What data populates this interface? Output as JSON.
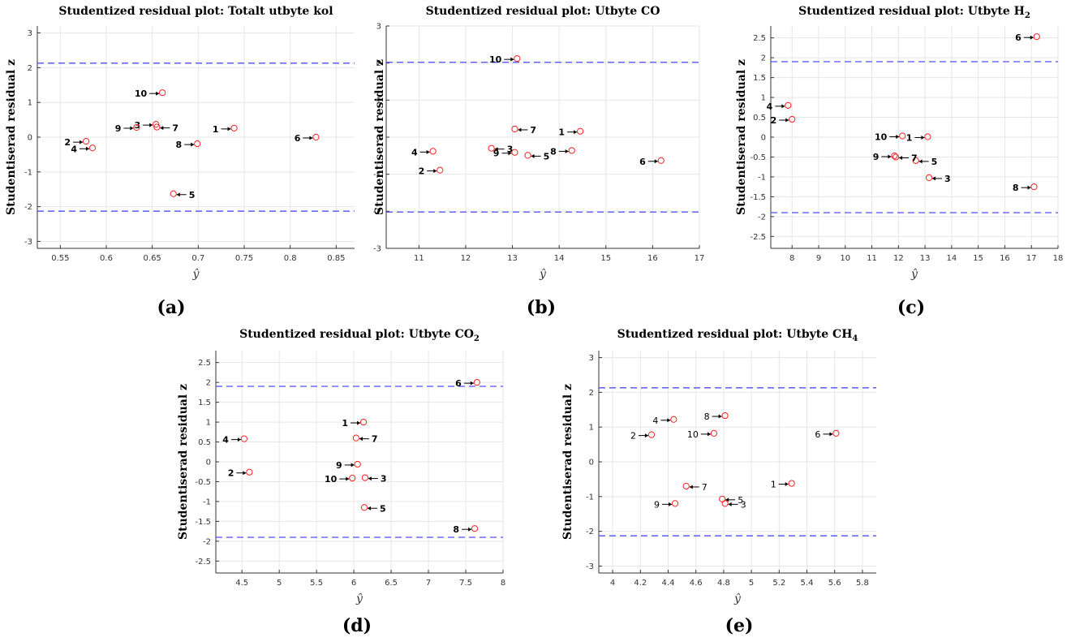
{
  "chart_data": [
    {
      "id": "a",
      "type": "scatter",
      "title": "Studentized residual plot: Totalt utbyte kol",
      "caption": "(a)",
      "xlabel": "ŷ",
      "ylabel": "Studentiserad residual z",
      "xlim": [
        0.525,
        0.87
      ],
      "ylim": [
        -3.2,
        3.2
      ],
      "xticks": [
        0.55,
        0.6,
        0.65,
        0.7,
        0.75,
        0.8,
        0.85
      ],
      "xticklabels": [
        "0.55",
        "0.6",
        "0.65",
        "0.7",
        "0.75",
        "0.8",
        "0.85"
      ],
      "yticks": [
        -3,
        -2,
        -1,
        0,
        1,
        2,
        3
      ],
      "yticklabels": [
        "-3",
        "-2",
        "-1",
        "0",
        "1",
        "2",
        "3"
      ],
      "thresholds": [
        2.13,
        -2.13
      ],
      "label_style": "bold",
      "points": [
        {
          "label": "1",
          "x": 0.739,
          "y": 0.26,
          "side": "left"
        },
        {
          "label": "2",
          "x": 0.578,
          "y": -0.12,
          "side": "left"
        },
        {
          "label": "3",
          "x": 0.654,
          "y": 0.37,
          "side": "left"
        },
        {
          "label": "4",
          "x": 0.585,
          "y": -0.31,
          "side": "left"
        },
        {
          "label": "5",
          "x": 0.673,
          "y": -1.63,
          "side": "right"
        },
        {
          "label": "6",
          "x": 0.828,
          "y": 0.0,
          "side": "left"
        },
        {
          "label": "7",
          "x": 0.655,
          "y": 0.29,
          "side": "right"
        },
        {
          "label": "8",
          "x": 0.699,
          "y": -0.19,
          "side": "left"
        },
        {
          "label": "9",
          "x": 0.633,
          "y": 0.28,
          "side": "left"
        },
        {
          "label": "10",
          "x": 0.661,
          "y": 1.28,
          "side": "left"
        }
      ]
    },
    {
      "id": "b",
      "type": "scatter",
      "title": "Studentized residual plot: Utbyte CO",
      "caption": "(b)",
      "xlabel": "ŷ",
      "ylabel": "Studentiserad residual z",
      "xlim": [
        10.3,
        17.0
      ],
      "ylim": [
        -3.0,
        3.0
      ],
      "xticks": [
        11,
        12,
        13,
        14,
        15,
        16,
        17
      ],
      "xticklabels": [
        "11",
        "12",
        "13",
        "14",
        "15",
        "16",
        "17"
      ],
      "yticks": [
        -3,
        -2,
        -1,
        0,
        1,
        2,
        3
      ],
      "yticklabels": [
        "-3",
        "-2",
        "-1",
        "0",
        "1",
        "2",
        "3"
      ],
      "thresholds": [
        2.02,
        -2.02
      ],
      "label_style": "bold",
      "points": [
        {
          "label": "1",
          "x": 14.45,
          "y": 0.16,
          "side": "left"
        },
        {
          "label": "2",
          "x": 11.45,
          "y": -0.89,
          "side": "left"
        },
        {
          "label": "3",
          "x": 12.55,
          "y": -0.3,
          "side": "right"
        },
        {
          "label": "4",
          "x": 11.3,
          "y": -0.38,
          "side": "left"
        },
        {
          "label": "5",
          "x": 13.33,
          "y": -0.49,
          "side": "right"
        },
        {
          "label": "6",
          "x": 16.18,
          "y": -0.63,
          "side": "left"
        },
        {
          "label": "7",
          "x": 13.05,
          "y": 0.22,
          "side": "right"
        },
        {
          "label": "8",
          "x": 14.27,
          "y": -0.36,
          "side": "left"
        },
        {
          "label": "9",
          "x": 13.05,
          "y": -0.41,
          "side": "left"
        },
        {
          "label": "10",
          "x": 13.1,
          "y": 2.12,
          "side": "left"
        }
      ]
    },
    {
      "id": "c",
      "type": "scatter",
      "title": "Studentized residual plot: Utbyte H",
      "title_subscript": "2",
      "caption": "(c)",
      "xlabel": "ŷ",
      "ylabel": "Studentiserad residual z",
      "xlim": [
        7.2,
        18.0
      ],
      "ylim": [
        -2.8,
        2.8
      ],
      "xticks": [
        8,
        9,
        10,
        11,
        12,
        13,
        14,
        15,
        16,
        17,
        18
      ],
      "xticklabels": [
        "8",
        "9",
        "10",
        "11",
        "12",
        "13",
        "14",
        "15",
        "16",
        "17",
        "18"
      ],
      "yticks": [
        -2.5,
        -2,
        -1.5,
        -1,
        -0.5,
        0,
        0.5,
        1,
        1.5,
        2,
        2.5
      ],
      "yticklabels": [
        "-2.5",
        "-2",
        "-1.5",
        "-1",
        "-0.5",
        "0",
        "0.5",
        "1",
        "1.5",
        "2",
        "2.5"
      ],
      "thresholds": [
        1.9,
        -1.9
      ],
      "label_style": "bold",
      "points": [
        {
          "label": "1",
          "x": 13.1,
          "y": 0.01,
          "side": "left"
        },
        {
          "label": "2",
          "x": 8.0,
          "y": 0.45,
          "side": "left"
        },
        {
          "label": "3",
          "x": 13.15,
          "y": -1.02,
          "side": "right"
        },
        {
          "label": "4",
          "x": 7.85,
          "y": 0.8,
          "side": "left"
        },
        {
          "label": "5",
          "x": 12.65,
          "y": -0.59,
          "side": "right"
        },
        {
          "label": "6",
          "x": 17.2,
          "y": 2.53,
          "side": "left"
        },
        {
          "label": "7",
          "x": 11.9,
          "y": -0.5,
          "side": "right"
        },
        {
          "label": "8",
          "x": 17.1,
          "y": -1.25,
          "side": "left"
        },
        {
          "label": "9",
          "x": 11.85,
          "y": -0.47,
          "side": "left"
        },
        {
          "label": "10",
          "x": 12.15,
          "y": 0.03,
          "side": "left"
        }
      ]
    },
    {
      "id": "d",
      "type": "scatter",
      "title": "Studentized residual plot: Utbyte CO",
      "title_subscript": "2",
      "caption": "(d)",
      "xlabel": "ŷ",
      "ylabel": "Studentiserad residual z",
      "xlim": [
        4.15,
        8.0
      ],
      "ylim": [
        -2.8,
        2.8
      ],
      "xticks": [
        4.5,
        5,
        5.5,
        6,
        6.5,
        7,
        7.5,
        8
      ],
      "xticklabels": [
        "4.5",
        "5",
        "5.5",
        "6",
        "6.5",
        "7",
        "7.5",
        "8"
      ],
      "yticks": [
        -2.5,
        -2,
        -1.5,
        -1,
        -0.5,
        0,
        0.5,
        1,
        1.5,
        2,
        2.5
      ],
      "yticklabels": [
        "-2.5",
        "-2",
        "-1.5",
        "-1",
        "-0.5",
        "0",
        "0.5",
        "1",
        "1.5",
        "2",
        "2.5"
      ],
      "thresholds": [
        1.9,
        -1.9
      ],
      "label_style": "bold",
      "points": [
        {
          "label": "1",
          "x": 6.13,
          "y": 1.0,
          "side": "left"
        },
        {
          "label": "2",
          "x": 4.6,
          "y": -0.26,
          "side": "left"
        },
        {
          "label": "3",
          "x": 6.15,
          "y": -0.4,
          "side": "right"
        },
        {
          "label": "4",
          "x": 4.53,
          "y": 0.58,
          "side": "left"
        },
        {
          "label": "5",
          "x": 6.14,
          "y": -1.15,
          "side": "right"
        },
        {
          "label": "6",
          "x": 7.65,
          "y": 2.0,
          "side": "left"
        },
        {
          "label": "7",
          "x": 6.03,
          "y": 0.6,
          "side": "right"
        },
        {
          "label": "8",
          "x": 7.62,
          "y": -1.68,
          "side": "left"
        },
        {
          "label": "9",
          "x": 6.05,
          "y": -0.06,
          "side": "left"
        },
        {
          "label": "10",
          "x": 5.98,
          "y": -0.41,
          "side": "left"
        }
      ]
    },
    {
      "id": "e",
      "type": "scatter",
      "title": "Studentized residual plot: Utbyte CH",
      "title_subscript": "4",
      "caption": "(e)",
      "xlabel": "ŷ",
      "ylabel": "Studentiserad residual z",
      "xlim": [
        3.9,
        5.9
      ],
      "ylim": [
        -3.2,
        3.2
      ],
      "xticks": [
        4,
        4.2,
        4.4,
        4.6,
        4.8,
        5,
        5.2,
        5.4,
        5.6,
        5.8
      ],
      "xticklabels": [
        "4",
        "4.2",
        "4.4",
        "4.6",
        "4.8",
        "5",
        "5.2",
        "5.4",
        "5.6",
        "5.8"
      ],
      "yticks": [
        -3,
        -2,
        -1,
        0,
        1,
        2,
        3
      ],
      "yticklabels": [
        "-3",
        "-2",
        "-1",
        "0",
        "1",
        "2",
        "3"
      ],
      "thresholds": [
        2.13,
        -2.13
      ],
      "label_style": "normal",
      "points": [
        {
          "label": "1",
          "x": 5.29,
          "y": -0.62,
          "side": "left"
        },
        {
          "label": "2",
          "x": 4.28,
          "y": 0.78,
          "side": "left"
        },
        {
          "label": "3",
          "x": 4.81,
          "y": -1.2,
          "side": "right"
        },
        {
          "label": "4",
          "x": 4.44,
          "y": 1.22,
          "side": "left"
        },
        {
          "label": "5",
          "x": 4.79,
          "y": -1.07,
          "side": "right"
        },
        {
          "label": "6",
          "x": 5.61,
          "y": 0.82,
          "side": "left"
        },
        {
          "label": "7",
          "x": 4.53,
          "y": -0.7,
          "side": "right"
        },
        {
          "label": "8",
          "x": 4.81,
          "y": 1.33,
          "side": "left"
        },
        {
          "label": "9",
          "x": 4.45,
          "y": -1.2,
          "side": "left"
        },
        {
          "label": "10",
          "x": 4.73,
          "y": 0.82,
          "side": "left"
        }
      ]
    }
  ]
}
